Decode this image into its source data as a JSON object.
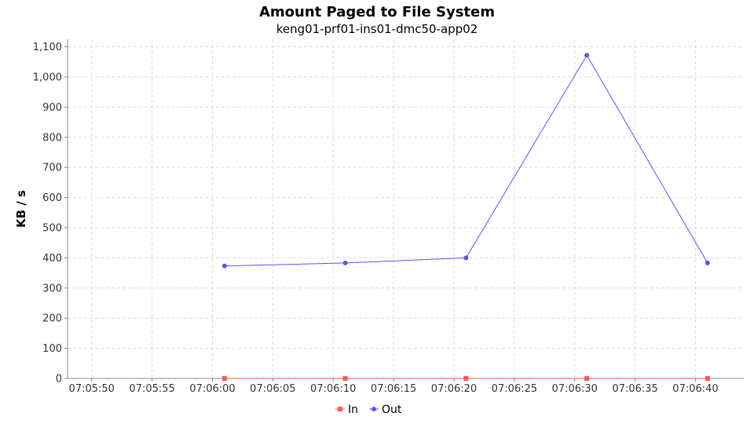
{
  "chart_data": {
    "type": "line",
    "title": "Amount Paged to File System",
    "subtitle": "keng01-prf01-ins01-dmc50-app02",
    "xlabel": "",
    "ylabel": "KB / s",
    "xlim": [
      "07:05:48",
      "07:06:44"
    ],
    "ylim": [
      0,
      1125
    ],
    "grid": true,
    "legend_position": "bottom-center",
    "x_ticks": [
      "07:05:50",
      "07:05:55",
      "07:06:00",
      "07:06:05",
      "07:06:10",
      "07:06:15",
      "07:06:20",
      "07:06:25",
      "07:06:30",
      "07:06:35",
      "07:06:40"
    ],
    "y_ticks": [
      0,
      100,
      200,
      300,
      400,
      500,
      600,
      700,
      800,
      900,
      1000,
      1100
    ],
    "y_tick_labels": [
      "0",
      "100",
      "200",
      "300",
      "400",
      "500",
      "600",
      "700",
      "800",
      "900",
      "1,000",
      "1,100"
    ],
    "x": [
      "07:06:01",
      "07:06:11",
      "07:06:21",
      "07:06:31",
      "07:06:41"
    ],
    "series": [
      {
        "name": "In",
        "color": "#ff5555",
        "marker": "square",
        "values": [
          0,
          0,
          0,
          0,
          0
        ]
      },
      {
        "name": "Out",
        "color": "#5555ff",
        "marker": "circle",
        "values": [
          373,
          383,
          400,
          1072,
          383
        ]
      }
    ]
  }
}
